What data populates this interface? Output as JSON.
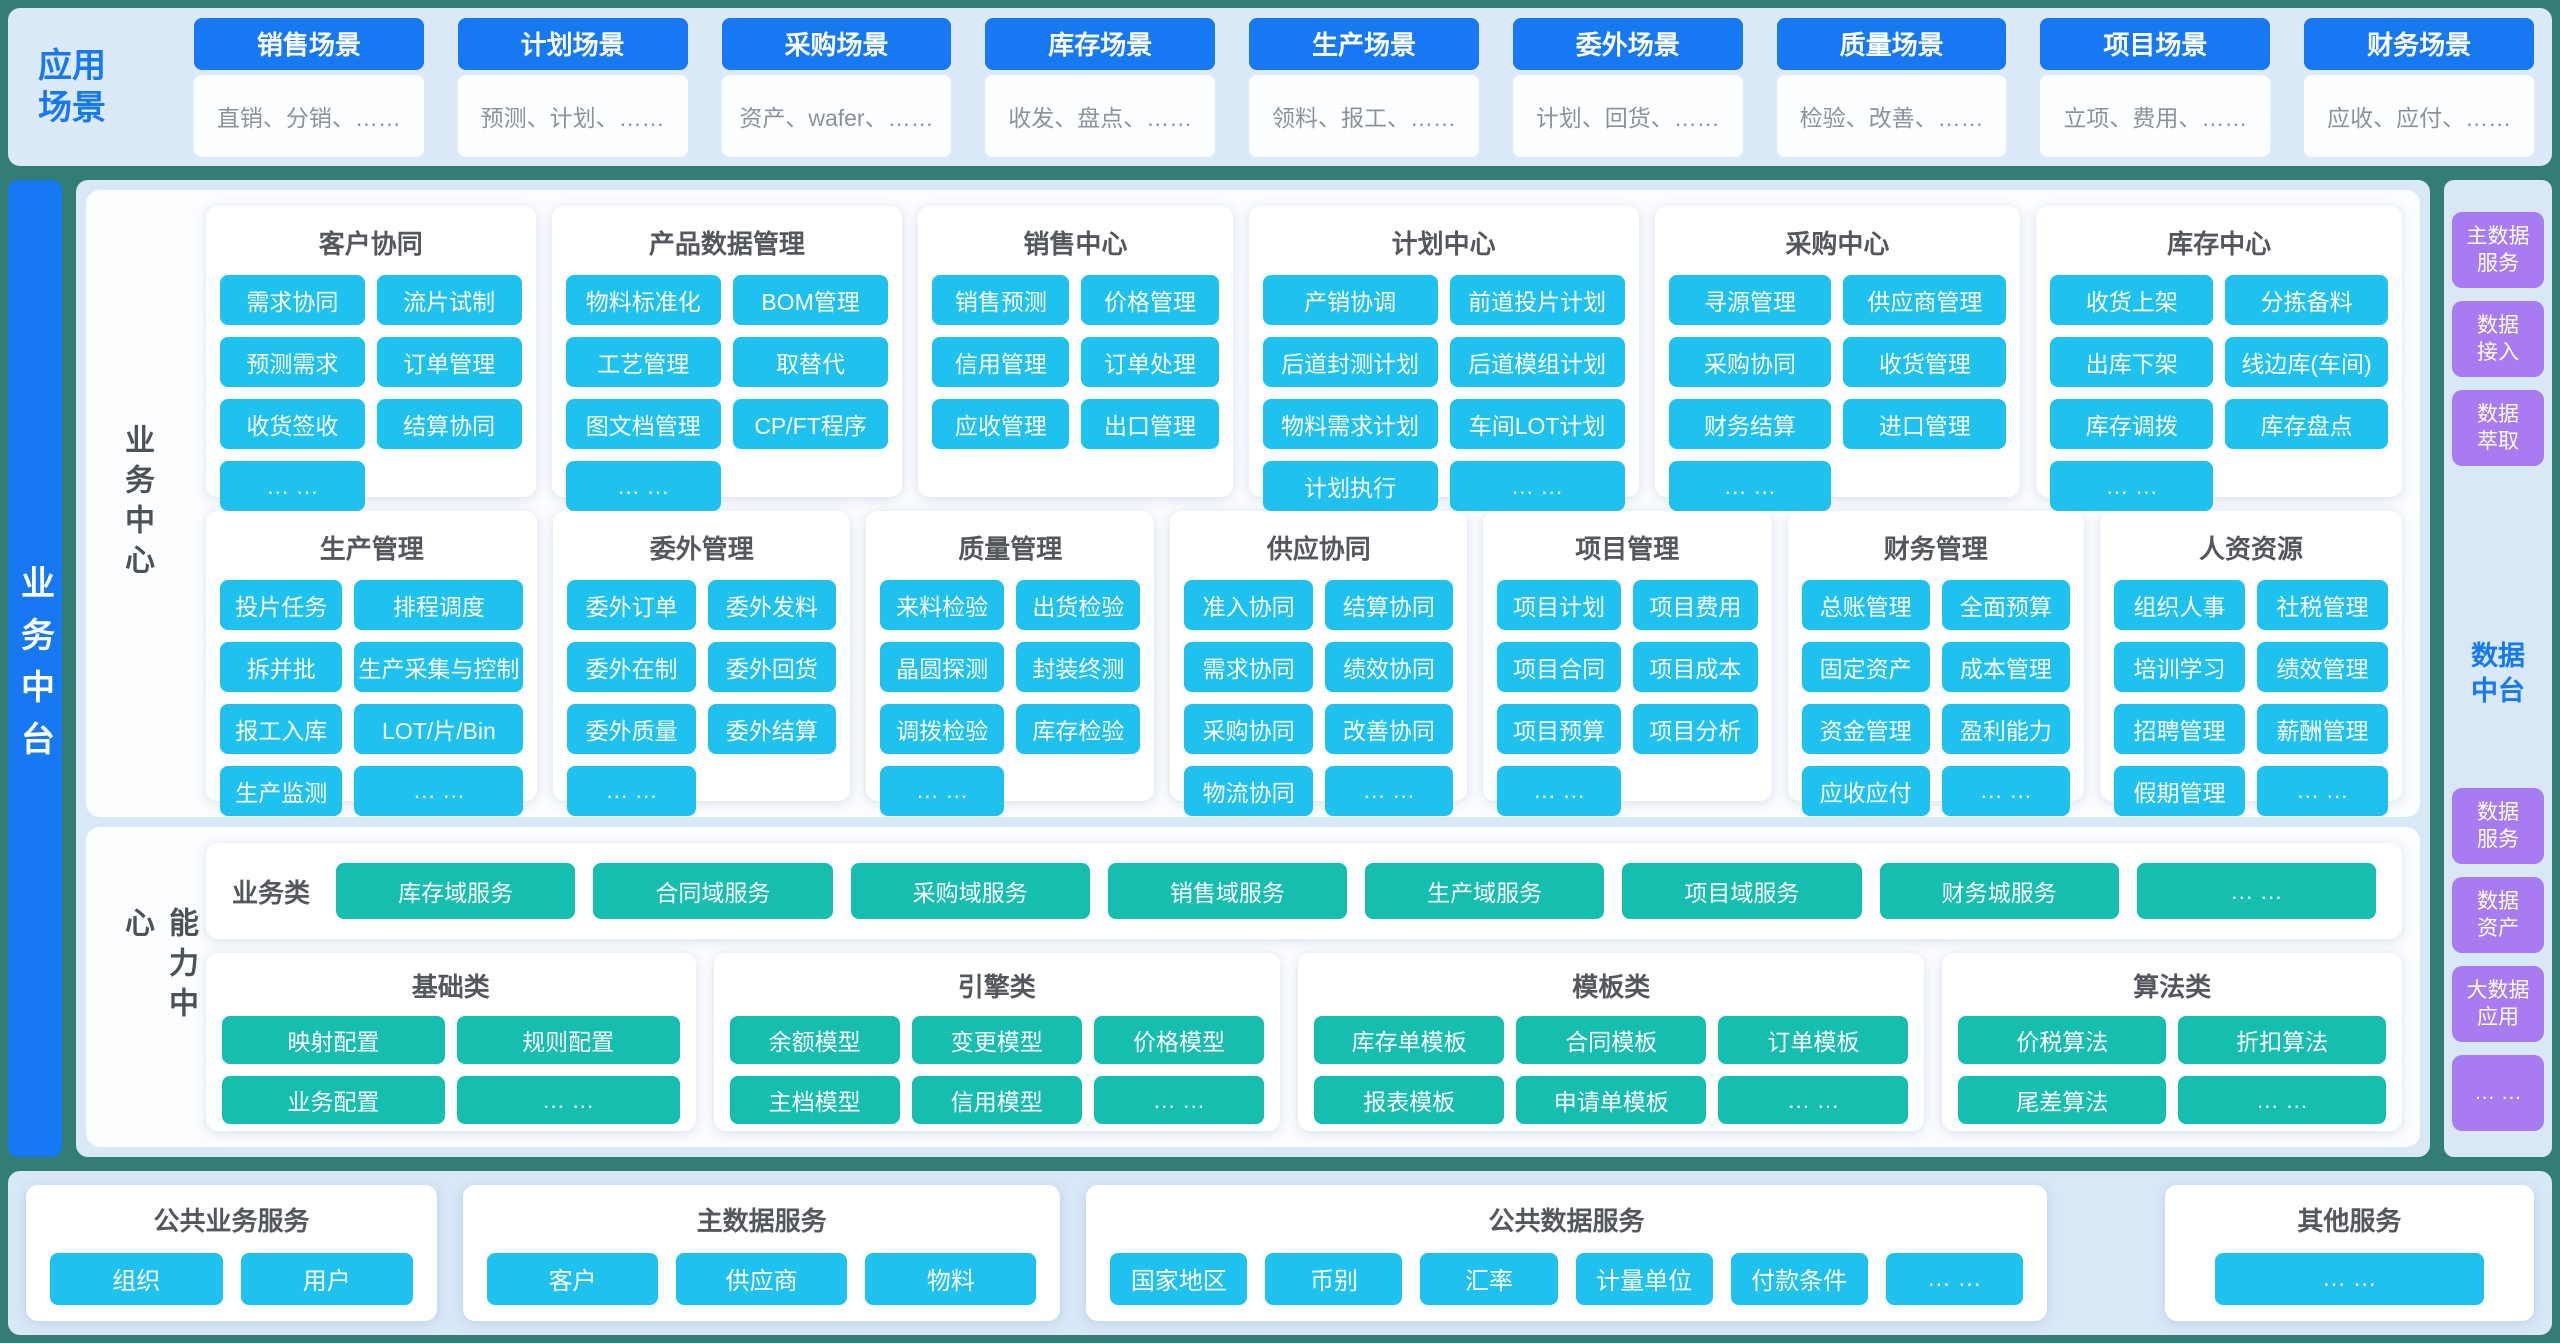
{
  "colors": {
    "frame_teal": "#337d74",
    "panel_light_blue": "#d9e8f7",
    "primary_blue": "#1678f2",
    "module_cyan": "#1fc2ef",
    "capability_teal": "#16beb0",
    "data_purple": "#a87cf0"
  },
  "app_scenarios": {
    "label": "应用\n场景",
    "cards": [
      {
        "title": "销售场景",
        "desc": "直销、分销、……"
      },
      {
        "title": "计划场景",
        "desc": "预测、计划、……"
      },
      {
        "title": "采购场景",
        "desc": "资产、wafer、……"
      },
      {
        "title": "库存场景",
        "desc": "收发、盘点、……"
      },
      {
        "title": "生产场景",
        "desc": "领料、报工、……"
      },
      {
        "title": "委外场景",
        "desc": "计划、回货、……"
      },
      {
        "title": "质量场景",
        "desc": "检验、改善、……"
      },
      {
        "title": "项目场景",
        "desc": "立项、费用、……"
      },
      {
        "title": "财务场景",
        "desc": "应收、应付、……"
      }
    ]
  },
  "left_bar": {
    "label": "业务中台"
  },
  "business_center": {
    "label": "业务中心",
    "row1": [
      {
        "title": "客户协同",
        "items": [
          "需求协同",
          "流片试制",
          "预测需求",
          "订单管理",
          "收货签收",
          "结算协同",
          "… …"
        ]
      },
      {
        "title": "产品数据管理",
        "items": [
          "物料标准化",
          "BOM管理",
          "工艺管理",
          "取替代",
          "图文档管理",
          "CP/FT程序",
          "… …"
        ]
      },
      {
        "title": "销售中心",
        "items": [
          "销售预测",
          "价格管理",
          "信用管理",
          "订单处理",
          "应收管理",
          "出口管理"
        ]
      },
      {
        "title": "计划中心",
        "items": [
          "产销协调",
          "前道投片计划",
          "后道封测计划",
          "后道模组计划",
          "物料需求计划",
          "车间LOT计划",
          "计划执行",
          "… …"
        ]
      },
      {
        "title": "采购中心",
        "items": [
          "寻源管理",
          "供应商管理",
          "采购协同",
          "收货管理",
          "财务结算",
          "进口管理",
          "… …"
        ]
      },
      {
        "title": "库存中心",
        "items": [
          "收货上架",
          "分拣备料",
          "出库下架",
          "线边库(车间)",
          "库存调拨",
          "库存盘点",
          "… …"
        ]
      }
    ],
    "row2": [
      {
        "title": "生产管理",
        "items": [
          "投片任务",
          "排程调度",
          "拆并批",
          "生产采集与控制",
          "报工入库",
          "LOT/片/Bin",
          "生产监测",
          "… …"
        ]
      },
      {
        "title": "委外管理",
        "items": [
          "委外订单",
          "委外发料",
          "委外在制",
          "委外回货",
          "委外质量",
          "委外结算",
          "… …"
        ]
      },
      {
        "title": "质量管理",
        "items": [
          "来料检验",
          "出货检验",
          "晶圆探测",
          "封装终测",
          "调拨检验",
          "库存检验",
          "… …"
        ]
      },
      {
        "title": "供应协同",
        "items": [
          "准入协同",
          "结算协同",
          "需求协同",
          "绩效协同",
          "采购协同",
          "改善协同",
          "物流协同",
          "… …"
        ]
      },
      {
        "title": "项目管理",
        "items": [
          "项目计划",
          "项目费用",
          "项目合同",
          "项目成本",
          "项目预算",
          "项目分析",
          "… …"
        ]
      },
      {
        "title": "财务管理",
        "items": [
          "总账管理",
          "全面预算",
          "固定资产",
          "成本管理",
          "资金管理",
          "盈利能力",
          "应收应付",
          "… …"
        ]
      },
      {
        "title": "人资资源",
        "items": [
          "组织人事",
          "社税管理",
          "培训学习",
          "绩效管理",
          "招聘管理",
          "薪酬管理",
          "假期管理",
          "… …"
        ]
      }
    ]
  },
  "capability_center": {
    "label": "能力中心",
    "business_row": {
      "label": "业务类",
      "items": [
        "库存域服务",
        "合同域服务",
        "采购域服务",
        "销售域服务",
        "生产域服务",
        "项目域服务",
        "财务城服务",
        "… …"
      ]
    },
    "groups": [
      {
        "title": "基础类",
        "items": [
          "映射配置",
          "规则配置",
          "业务配置",
          "… …"
        ]
      },
      {
        "title": "引擎类",
        "items": [
          "余额模型",
          "变更模型",
          "价格模型",
          "主档模型",
          "信用模型",
          "… …"
        ]
      },
      {
        "title": "模板类",
        "items": [
          "库存单模板",
          "合同模板",
          "订单模板",
          "报表模板",
          "申请单模板",
          "… …"
        ]
      },
      {
        "title": "算法类",
        "items": [
          "价税算法",
          "折扣算法",
          "尾差算法",
          "… …"
        ]
      }
    ]
  },
  "data_platform": {
    "label": "数据\n中台",
    "top_items": [
      "主数据\n服务",
      "数据\n接入",
      "数据\n萃取"
    ],
    "bottom_items": [
      "数据\n服务",
      "数据\n资产",
      "大数据\n应用",
      "… …"
    ]
  },
  "bottom_services": [
    {
      "title": "公共业务服务",
      "items": [
        "组织",
        "用户"
      ]
    },
    {
      "title": "主数据服务",
      "items": [
        "客户",
        "供应商",
        "物料"
      ]
    },
    {
      "title": "公共数据服务",
      "items": [
        "国家地区",
        "币别",
        "汇率",
        "计量单位",
        "付款条件",
        "… …"
      ]
    },
    {
      "title": "其他服务",
      "items": [
        "… …"
      ]
    }
  ]
}
